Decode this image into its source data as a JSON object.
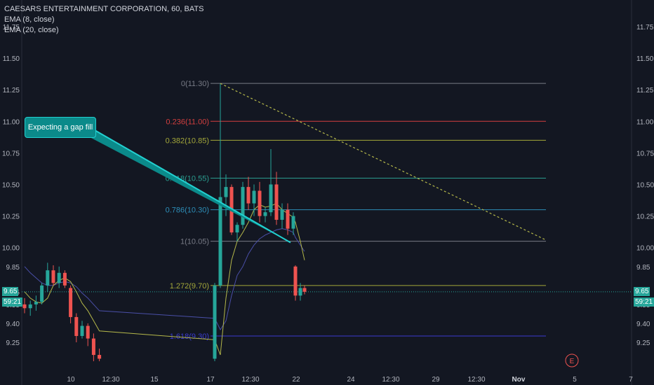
{
  "legend": {
    "title": "CAESARS ENTERTAINMENT CORPORATION, 60, BATS",
    "ema8": "EMA (8, close)",
    "ema20": "EMA (20, close)"
  },
  "callout": "Expecting a gap fill",
  "price_tag": {
    "value": "9.65",
    "countdown": "59:21"
  },
  "earnings_marker": "E",
  "colors": {
    "background": "#131722",
    "up": "#26a69a",
    "down": "#ef5350",
    "ema8": "#b5b84a",
    "ema20": "#4a4fa8",
    "callout": "#0b8a8a"
  },
  "chart_data": {
    "type": "candlestick",
    "y_axis": {
      "ticks": [
        "11.75",
        "11.50",
        "11.25",
        "11.00",
        "10.75",
        "10.50",
        "10.25",
        "10.00",
        "9.85",
        "9.65",
        "9.55",
        "9.40",
        "9.25"
      ],
      "ylim": [
        9.1,
        11.85
      ]
    },
    "x_axis": {
      "ticks": [
        "10",
        "12:30",
        "15",
        "17",
        "12:30",
        "22",
        "24",
        "12:30",
        "29",
        "12:30",
        "Nov",
        "5",
        "7"
      ]
    },
    "fib_levels": [
      {
        "label": "0(11.30)",
        "value": 11.3,
        "color": "#787b86"
      },
      {
        "label": "0.236(11.00)",
        "value": 11.0,
        "color": "#d43f3f"
      },
      {
        "label": "0.382(10.85)",
        "value": 10.85,
        "color": "#a4a83a"
      },
      {
        "label": "0.618(10.55)",
        "value": 10.55,
        "color": "#2a9d8f"
      },
      {
        "label": "0.786(10.30)",
        "value": 10.3,
        "color": "#2d8eb8"
      },
      {
        "label": "1(10.05)",
        "value": 10.05,
        "color": "#787b86"
      },
      {
        "label": "1.272(9.70)",
        "value": 9.7,
        "color": "#a4a83a"
      },
      {
        "label": "1.618(9.30)",
        "value": 9.3,
        "color": "#3b3bd1"
      }
    ],
    "candles": [
      {
        "o": 9.55,
        "h": 9.6,
        "l": 9.48,
        "c": 9.52
      },
      {
        "o": 9.52,
        "h": 9.58,
        "l": 9.46,
        "c": 9.55
      },
      {
        "o": 9.55,
        "h": 9.62,
        "l": 9.5,
        "c": 9.57
      },
      {
        "o": 9.57,
        "h": 9.72,
        "l": 9.55,
        "c": 9.7
      },
      {
        "o": 9.7,
        "h": 9.88,
        "l": 9.65,
        "c": 9.82
      },
      {
        "o": 9.82,
        "h": 9.86,
        "l": 9.7,
        "c": 9.72
      },
      {
        "o": 9.72,
        "h": 9.85,
        "l": 9.68,
        "c": 9.8
      },
      {
        "o": 9.8,
        "h": 9.82,
        "l": 9.68,
        "c": 9.7
      },
      {
        "o": 9.68,
        "h": 9.7,
        "l": 9.4,
        "c": 9.45
      },
      {
        "o": 9.45,
        "h": 9.48,
        "l": 9.25,
        "c": 9.3
      },
      {
        "o": 9.3,
        "h": 9.42,
        "l": 9.28,
        "c": 9.38
      },
      {
        "o": 9.38,
        "h": 9.4,
        "l": 9.22,
        "c": 9.28
      },
      {
        "o": 9.28,
        "h": 9.32,
        "l": 9.1,
        "c": 9.15
      },
      {
        "o": 9.15,
        "h": 9.2,
        "l": 9.1,
        "c": 9.12
      },
      {
        "o": 9.12,
        "h": 9.72,
        "l": 9.1,
        "c": 9.7
      },
      {
        "o": 9.7,
        "h": 11.3,
        "l": 9.68,
        "c": 10.4
      },
      {
        "o": 10.4,
        "h": 10.58,
        "l": 10.25,
        "c": 10.48
      },
      {
        "o": 10.48,
        "h": 10.5,
        "l": 10.1,
        "c": 10.12
      },
      {
        "o": 10.12,
        "h": 10.2,
        "l": 10.05,
        "c": 10.18
      },
      {
        "o": 10.18,
        "h": 10.52,
        "l": 10.15,
        "c": 10.48
      },
      {
        "o": 10.48,
        "h": 10.56,
        "l": 10.3,
        "c": 10.35
      },
      {
        "o": 10.35,
        "h": 10.5,
        "l": 10.25,
        "c": 10.45
      },
      {
        "o": 10.45,
        "h": 10.52,
        "l": 10.2,
        "c": 10.25
      },
      {
        "o": 10.25,
        "h": 10.32,
        "l": 10.2,
        "c": 10.28
      },
      {
        "o": 10.28,
        "h": 10.78,
        "l": 10.25,
        "c": 10.5
      },
      {
        "o": 10.5,
        "h": 10.6,
        "l": 10.18,
        "c": 10.22
      },
      {
        "o": 10.22,
        "h": 10.35,
        "l": 10.15,
        "c": 10.3
      },
      {
        "o": 10.3,
        "h": 10.35,
        "l": 10.1,
        "c": 10.15
      },
      {
        "o": 10.15,
        "h": 10.28,
        "l": 10.1,
        "c": 10.25
      },
      {
        "o": 9.85,
        "h": 9.86,
        "l": 9.58,
        "c": 9.62
      },
      {
        "o": 9.62,
        "h": 9.72,
        "l": 9.58,
        "c": 9.68
      },
      {
        "o": 9.68,
        "h": 9.7,
        "l": 9.63,
        "c": 9.65
      }
    ],
    "ema8": [
      9.65,
      9.6,
      9.57,
      9.56,
      9.6,
      9.7,
      9.74,
      9.76,
      9.73,
      9.65,
      9.56,
      9.5,
      9.42,
      9.34,
      9.27,
      9.15,
      9.6,
      9.9,
      10.05,
      10.12,
      10.2,
      10.3,
      10.34,
      10.32,
      10.33,
      10.35,
      10.3,
      10.27,
      10.24,
      10.2,
      10.05,
      9.9
    ],
    "ema20": [
      9.85,
      9.8,
      9.76,
      9.72,
      9.7,
      9.7,
      9.72,
      9.73,
      9.72,
      9.69,
      9.64,
      9.6,
      9.55,
      9.5,
      9.44,
      9.35,
      9.42,
      9.62,
      9.78,
      9.85,
      9.95,
      10.02,
      10.07,
      10.1,
      10.12,
      10.14,
      10.15,
      10.14,
      10.12,
      10.08,
      10.02,
      9.97
    ],
    "trendline": {
      "from": {
        "bar": 15,
        "price": 11.3
      },
      "to_price": 10.06
    },
    "callout_pointer_price": 10.04
  }
}
